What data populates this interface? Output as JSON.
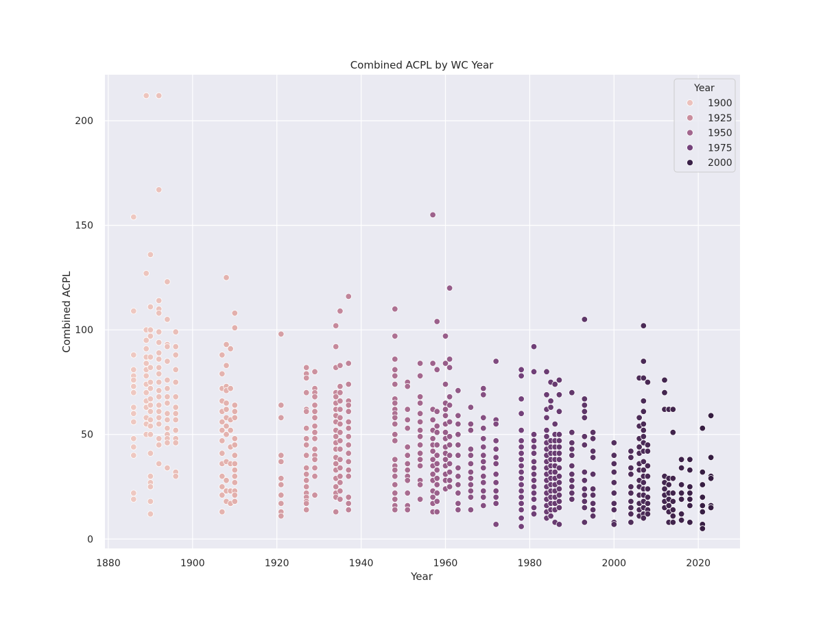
{
  "chart_data": {
    "type": "scatter",
    "title": "Combined ACPL by WC Year",
    "xlabel": "Year",
    "ylabel": "Combined ACPL",
    "xlim": [
      1879.2,
      2029.9
    ],
    "ylim": [
      -4.5,
      222
    ],
    "xticks": [
      1880,
      1900,
      1920,
      1940,
      1960,
      1980,
      2000,
      2020
    ],
    "yticks": [
      0,
      50,
      100,
      150,
      200
    ],
    "grid": true,
    "legend": {
      "title": "Year",
      "placement": "top-right",
      "entries": [
        {
          "label": "1900",
          "color": "#ecc1bc"
        },
        {
          "label": "1925",
          "color": "#c98d9d"
        },
        {
          "label": "1950",
          "color": "#a2668e"
        },
        {
          "label": "1975",
          "color": "#74427b"
        },
        {
          "label": "2000",
          "color": "#3a2148"
        }
      ]
    },
    "color_scale": {
      "min": 1886,
      "max": 2023,
      "stops": [
        "#eec8c1",
        "#e3b1ad",
        "#c98d9d",
        "#a2668e",
        "#74427b",
        "#54305f",
        "#341c40"
      ]
    },
    "series": [
      {
        "x": 1886,
        "y": [
          154,
          109,
          88,
          81,
          78,
          76,
          73,
          70,
          63,
          60,
          56,
          48,
          44,
          40,
          22,
          19
        ]
      },
      {
        "x": 1889,
        "y": [
          212,
          127,
          100,
          95,
          91,
          87,
          84,
          81,
          78,
          74,
          70,
          66,
          63,
          58,
          55,
          50
        ]
      },
      {
        "x": 1890,
        "y": [
          136,
          111,
          100,
          97,
          87,
          82,
          75,
          72,
          67,
          64,
          61,
          57,
          54,
          50,
          41,
          30,
          27,
          25,
          18,
          12
        ]
      },
      {
        "x": 1892,
        "y": [
          212,
          167,
          114,
          110,
          108,
          99,
          94,
          89,
          86,
          82,
          79,
          75,
          71,
          68,
          64,
          61,
          58,
          55,
          48,
          45,
          36
        ]
      },
      {
        "x": 1894,
        "y": [
          123,
          105,
          93,
          92,
          85,
          76,
          72,
          68,
          65,
          60,
          57,
          53,
          50,
          48,
          46,
          34
        ]
      },
      {
        "x": 1896,
        "y": [
          99,
          92,
          88,
          81,
          75,
          68,
          63,
          60,
          57,
          52,
          48,
          46,
          32,
          30
        ]
      },
      {
        "x": 1907,
        "y": [
          88,
          79,
          72,
          66,
          61,
          56,
          52,
          47,
          41,
          36,
          30,
          25,
          21,
          13
        ]
      },
      {
        "x": 1908,
        "y": [
          125,
          93,
          83,
          73,
          71,
          65,
          62,
          58,
          54,
          50,
          37,
          28,
          23,
          18
        ]
      },
      {
        "x": 1909,
        "y": [
          91,
          72,
          57,
          52,
          44,
          36,
          23,
          17
        ]
      },
      {
        "x": 1910,
        "y": [
          108,
          101,
          64,
          61,
          58,
          48,
          45,
          40,
          36,
          33,
          30,
          27,
          23,
          21,
          18
        ]
      },
      {
        "x": 1921,
        "y": [
          98,
          64,
          58,
          40,
          37,
          29,
          26,
          21,
          17,
          13,
          11
        ]
      },
      {
        "x": 1927,
        "y": [
          82,
          79,
          77,
          70,
          62,
          61,
          53,
          48,
          45,
          40,
          34,
          31,
          28,
          25,
          22,
          20,
          18,
          17,
          14
        ]
      },
      {
        "x": 1929,
        "y": [
          80,
          72,
          70,
          68,
          64,
          61,
          58,
          54,
          51,
          48,
          43,
          40,
          38,
          34,
          30,
          21
        ]
      },
      {
        "x": 1934,
        "y": [
          102,
          92,
          82,
          70,
          68,
          65,
          62,
          59,
          56,
          52,
          49,
          46,
          43,
          39,
          36,
          33,
          29,
          25,
          22,
          20,
          13
        ]
      },
      {
        "x": 1935,
        "y": [
          109,
          83,
          73,
          70,
          66,
          62,
          58,
          55,
          51,
          47,
          43,
          38,
          34,
          30,
          27,
          23,
          19
        ]
      },
      {
        "x": 1937,
        "y": [
          116,
          84,
          74,
          66,
          64,
          61,
          56,
          53,
          49,
          45,
          41,
          37,
          33,
          30,
          20,
          17,
          14
        ]
      },
      {
        "x": 1948,
        "y": [
          110,
          97,
          86,
          81,
          78,
          74,
          67,
          65,
          62,
          60,
          58,
          55,
          50,
          47,
          38,
          35,
          33,
          30,
          26,
          22,
          19,
          16,
          14
        ]
      },
      {
        "x": 1951,
        "y": [
          75,
          73,
          62,
          57,
          53,
          44,
          40,
          36,
          33,
          30,
          28,
          22,
          16,
          14
        ]
      },
      {
        "x": 1954,
        "y": [
          84,
          78,
          68,
          65,
          60,
          56,
          52,
          49,
          45,
          41,
          38,
          35,
          28,
          26,
          19
        ]
      },
      {
        "x": 1957,
        "y": [
          155,
          84,
          62,
          57,
          52,
          48,
          45,
          42,
          38,
          35,
          31,
          28,
          23,
          20,
          17,
          13
        ]
      },
      {
        "x": 1958,
        "y": [
          104,
          81,
          61,
          54,
          51,
          45,
          40,
          36,
          33,
          29,
          26,
          22,
          18,
          13
        ]
      },
      {
        "x": 1960,
        "y": [
          97,
          84,
          74,
          65,
          62,
          59,
          55,
          51,
          48,
          44,
          41,
          38,
          35,
          31,
          28,
          24
        ]
      },
      {
        "x": 1961,
        "y": [
          120,
          86,
          82,
          68,
          64,
          56,
          49,
          45,
          40,
          36,
          32,
          28,
          25
        ]
      },
      {
        "x": 1963,
        "y": [
          71,
          59,
          55,
          50,
          45,
          40,
          34,
          30,
          26,
          22,
          17,
          14
        ]
      },
      {
        "x": 1966,
        "y": [
          63,
          55,
          52,
          43,
          40,
          36,
          32,
          29,
          26,
          23,
          20,
          14
        ]
      },
      {
        "x": 1969,
        "y": [
          72,
          69,
          58,
          53,
          48,
          44,
          40,
          37,
          34,
          30,
          27,
          23,
          20,
          16
        ]
      },
      {
        "x": 1972,
        "y": [
          85,
          57,
          55,
          47,
          43,
          39,
          36,
          31,
          27,
          23,
          20,
          17,
          7
        ]
      },
      {
        "x": 1978,
        "y": [
          81,
          78,
          67,
          60,
          52,
          47,
          44,
          41,
          38,
          35,
          32,
          29,
          26,
          23,
          20,
          17,
          14,
          10,
          6
        ]
      },
      {
        "x": 1981,
        "y": [
          92,
          80,
          50,
          47,
          44,
          41,
          37,
          34,
          31,
          28,
          25,
          22,
          19,
          15,
          12
        ]
      },
      {
        "x": 1984,
        "y": [
          80,
          69,
          62,
          58,
          52,
          49,
          46,
          43,
          40,
          37,
          34,
          31,
          28,
          25,
          22,
          19,
          16,
          13,
          10
        ]
      },
      {
        "x": 1985,
        "y": [
          75,
          66,
          63,
          47,
          44,
          41,
          38,
          35,
          32,
          29,
          26,
          23,
          20,
          17,
          14,
          11
        ]
      },
      {
        "x": 1986,
        "y": [
          74,
          55,
          50,
          47,
          44,
          41,
          38,
          35,
          32,
          29,
          26,
          23,
          20,
          17,
          14,
          8
        ]
      },
      {
        "x": 1987,
        "y": [
          76,
          69,
          61,
          50,
          47,
          44,
          41,
          38,
          34,
          30,
          27,
          24,
          21,
          18,
          15,
          7
        ]
      },
      {
        "x": 1990,
        "y": [
          70,
          51,
          46,
          43,
          40,
          35,
          31,
          28,
          25,
          22,
          19
        ]
      },
      {
        "x": 1993,
        "y": [
          105,
          67,
          64,
          61,
          58,
          49,
          45,
          32,
          28,
          24,
          21,
          18,
          15,
          8
        ]
      },
      {
        "x": 1995,
        "y": [
          51,
          48,
          42,
          39,
          31,
          24,
          21,
          17,
          14,
          11
        ]
      },
      {
        "x": 2000,
        "y": [
          46,
          40,
          36,
          32,
          27,
          22,
          17,
          14,
          8,
          7
        ]
      },
      {
        "x": 2004,
        "y": [
          42,
          39,
          34,
          31,
          25,
          22,
          18,
          15,
          12,
          8
        ]
      },
      {
        "x": 2006,
        "y": [
          77,
          58,
          54,
          48,
          44,
          41,
          36,
          33,
          28,
          25,
          21,
          17,
          14,
          11
        ]
      },
      {
        "x": 2007,
        "y": [
          102,
          85,
          77,
          66,
          61,
          55,
          52,
          49,
          46,
          42,
          37,
          33,
          30,
          27,
          24,
          21,
          18,
          15,
          12,
          10
        ]
      },
      {
        "x": 2008,
        "y": [
          75,
          45,
          42,
          35,
          30,
          24,
          20,
          17,
          14,
          12
        ]
      },
      {
        "x": 2012,
        "y": [
          76,
          70,
          62,
          30,
          27,
          24,
          21,
          18,
          15
        ]
      },
      {
        "x": 2013,
        "y": [
          62,
          29,
          26,
          22,
          19,
          16,
          13,
          8
        ]
      },
      {
        "x": 2014,
        "y": [
          62,
          51,
          29,
          22,
          18,
          14,
          11,
          8
        ]
      },
      {
        "x": 2016,
        "y": [
          38,
          34,
          26,
          22,
          19,
          12,
          9
        ]
      },
      {
        "x": 2018,
        "y": [
          38,
          33,
          25,
          22,
          19,
          16,
          8
        ]
      },
      {
        "x": 2021,
        "y": [
          53,
          32,
          26,
          20,
          16,
          13,
          7,
          5
        ]
      },
      {
        "x": 2023,
        "y": [
          59,
          39,
          30,
          29,
          16,
          15
        ]
      }
    ]
  }
}
